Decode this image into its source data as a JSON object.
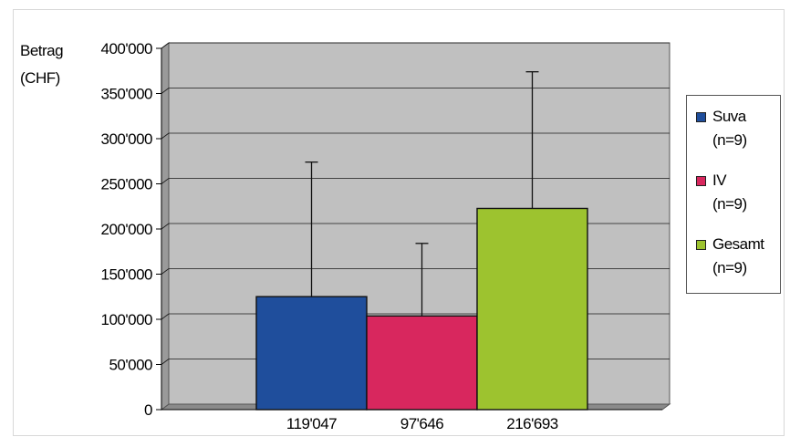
{
  "chart_data": {
    "type": "bar",
    "title": "",
    "ylabel_lines": [
      "Betrag",
      "(CHF)"
    ],
    "xlabel": "",
    "categories": [
      "119'047",
      "97'646",
      "216'693"
    ],
    "ylim": [
      0,
      400000
    ],
    "yticks": [
      {
        "value": 0,
        "label": "0"
      },
      {
        "value": 50000,
        "label": "50'000"
      },
      {
        "value": 100000,
        "label": "100'000"
      },
      {
        "value": 150000,
        "label": "150'000"
      },
      {
        "value": 200000,
        "label": "200'000"
      },
      {
        "value": 250000,
        "label": "250'000"
      },
      {
        "value": 300000,
        "label": "300'000"
      },
      {
        "value": 350000,
        "label": "350'000"
      },
      {
        "value": 400000,
        "label": "400'000"
      }
    ],
    "series": [
      {
        "name": "Suva",
        "n_label": "(n=9)",
        "color": "#1f4e9c",
        "value": 119047,
        "error_upper": 268000
      },
      {
        "name": "IV",
        "n_label": "(n=9)",
        "color": "#d8275e",
        "value": 97646,
        "error_upper": 178000
      },
      {
        "name": "Gesamt",
        "n_label": "(n=9)",
        "color": "#9dc32f",
        "value": 216693,
        "error_upper": 368000
      }
    ],
    "grid": true,
    "plot_background": "#c0c0c0",
    "legend_position": "right"
  }
}
